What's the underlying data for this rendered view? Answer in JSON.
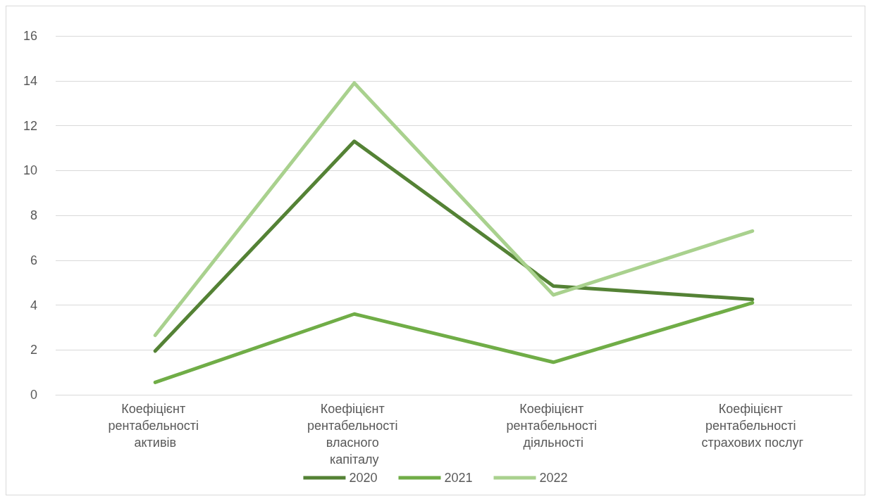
{
  "chart_data": {
    "type": "line",
    "categories": [
      "Коефіцієнт рентабельності активів",
      "Коефіцієнт рентабельності власного капіталу",
      "Коефіцієнт рентабельності діяльності",
      "Коефіцієнт рентабельності страхових послуг"
    ],
    "series": [
      {
        "name": "2020",
        "color": "#548235",
        "values": [
          1.95,
          11.3,
          4.85,
          4.25
        ]
      },
      {
        "name": "2021",
        "color": "#70ad47",
        "values": [
          0.55,
          3.6,
          1.45,
          4.1
        ]
      },
      {
        "name": "2022",
        "color": "#a9d18e",
        "values": [
          2.65,
          13.9,
          4.45,
          7.3
        ]
      }
    ],
    "ylim": [
      0,
      16
    ],
    "yticks": [
      0,
      2,
      4,
      6,
      8,
      10,
      12,
      14,
      16
    ],
    "grid": "y",
    "legend": "bottom",
    "marker": "none",
    "line_style": "solid"
  }
}
